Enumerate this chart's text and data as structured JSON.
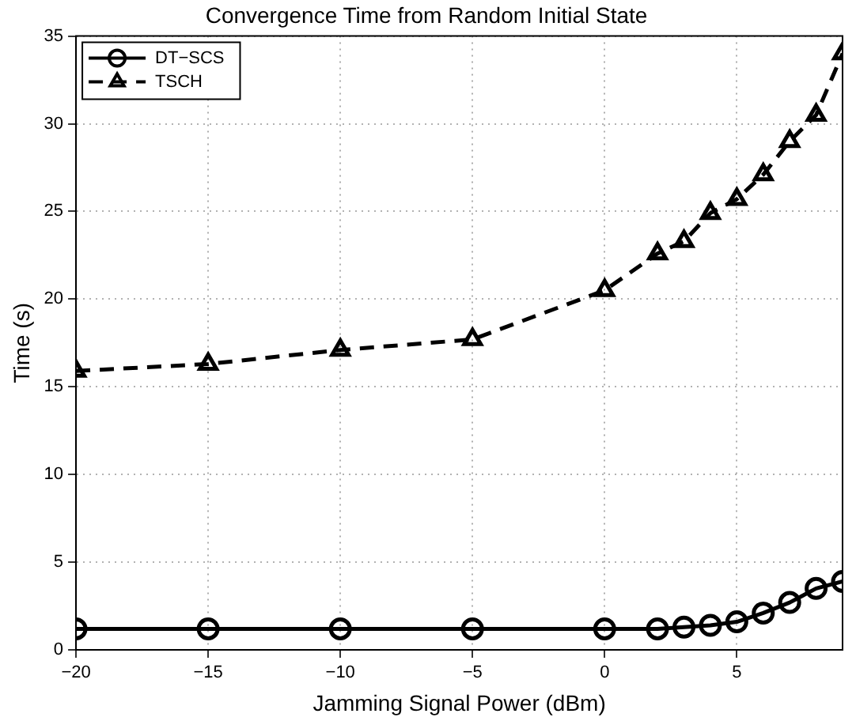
{
  "chart_data": {
    "type": "line",
    "title": "Convergence Time from Random Initial State",
    "xlabel": "Jamming Signal Power (dBm)",
    "ylabel": "Time (s)",
    "x": [
      -20,
      -15,
      -10,
      -5,
      0,
      2,
      3,
      4,
      5,
      6,
      7,
      8,
      9
    ],
    "series": [
      {
        "name": "DT−SCS",
        "color": "#000000",
        "marker": "circle",
        "line_style": "solid",
        "values": [
          1.2,
          1.2,
          1.2,
          1.2,
          1.2,
          1.2,
          1.3,
          1.4,
          1.6,
          2.1,
          2.7,
          3.5,
          3.9
        ]
      },
      {
        "name": "TSCH",
        "color": "#000000",
        "marker": "triangle",
        "line_style": "dashed",
        "values": [
          15.9,
          16.3,
          17.1,
          17.7,
          20.5,
          22.6,
          23.3,
          24.9,
          25.7,
          27.1,
          29.0,
          30.5,
          34.0
        ]
      }
    ],
    "xlim": [
      -20,
      9
    ],
    "xticks": [
      -20,
      -15,
      -10,
      -5,
      0,
      5
    ],
    "ylim": [
      0,
      35
    ],
    "yticks": [
      0,
      5,
      10,
      15,
      20,
      25,
      30,
      35
    ],
    "grid": true,
    "legend": "top left"
  }
}
